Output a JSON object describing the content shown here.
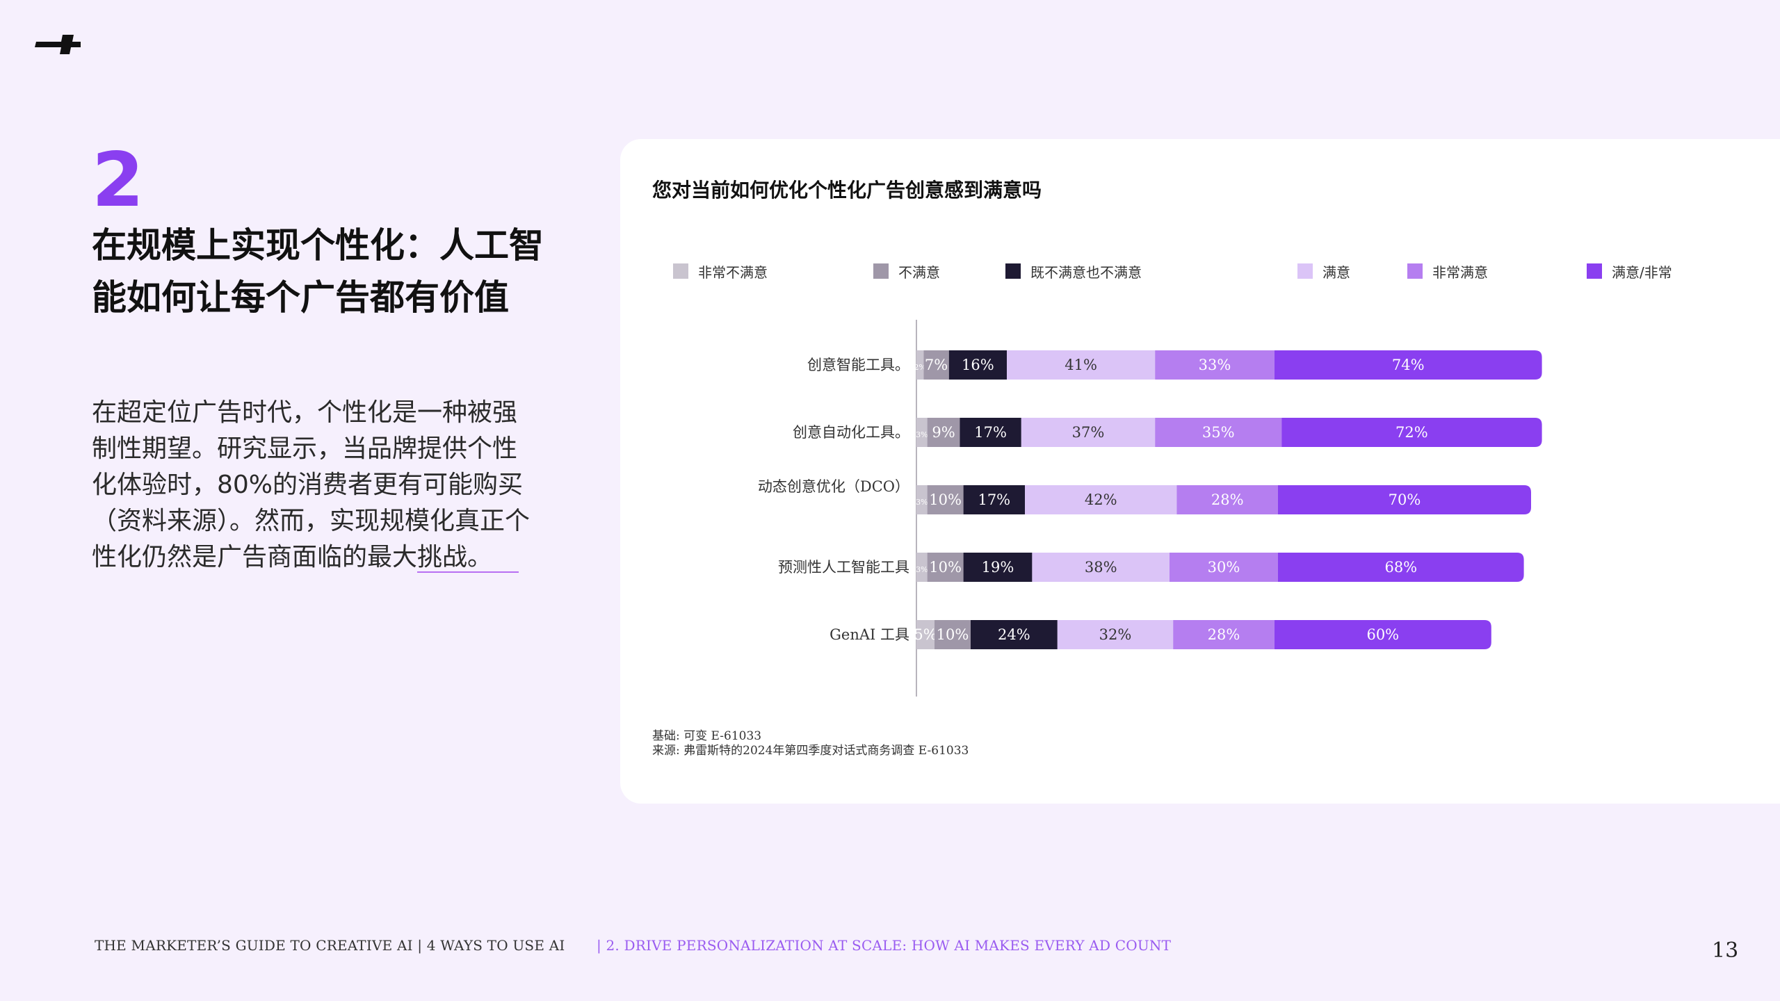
{
  "section": {
    "number": "2",
    "title": "在规模上实现个性化：人工智能如何让每个广告都有价值",
    "body": "在超定位广告时代，个性化是一种被强制性期望。研究显示，当品牌提供个性化体验时，80%的消费者更有可能购买（资料来源）。然而，实现规模化真正个性化仍然是广告商面临的最大挑战。"
  },
  "chart_data": {
    "type": "bar",
    "orientation": "horizontal-stacked",
    "title": "您对当前如何优化个性化广告创意感到满意吗",
    "legend_position": "top",
    "legend": [
      {
        "label": "非常不满意",
        "color": "#c9c4cf"
      },
      {
        "label": "不满意",
        "color": "#9f97a8"
      },
      {
        "label": "既不满意也不满意",
        "color": "#1e1a33"
      },
      {
        "label": "满意",
        "color": "#dbc4f7"
      },
      {
        "label": "非常满意",
        "color": "#b57ef0"
      },
      {
        "label": "满意/非常",
        "color": "#8a3ff0"
      }
    ],
    "categories": [
      "创意智能工具。",
      "创意自动化工具。",
      "动态创意优化（DCO）",
      "预测性人工智能工具",
      "GenAI 工具"
    ],
    "series": [
      {
        "name": "非常不满意",
        "values": [
          2,
          3,
          3,
          3,
          5
        ],
        "labels": [
          "2%",
          "3%",
          "3%",
          "3%",
          "5%"
        ]
      },
      {
        "name": "不满意",
        "values": [
          7,
          9,
          10,
          10,
          10
        ],
        "labels": [
          "7%",
          "9%",
          "10%",
          "10%",
          "10%"
        ]
      },
      {
        "name": "既不满意也不满意",
        "values": [
          16,
          17,
          17,
          19,
          24
        ],
        "labels": [
          "16%",
          "17%",
          "17%",
          "19%",
          "24%"
        ]
      },
      {
        "name": "满意",
        "values": [
          41,
          37,
          42,
          38,
          32
        ],
        "labels": [
          "41%",
          "37%",
          "42%",
          "38%",
          "32%"
        ]
      },
      {
        "name": "非常满意",
        "values": [
          33,
          35,
          28,
          30,
          28
        ],
        "labels": [
          "33%",
          "35%",
          "28%",
          "30%",
          "28%"
        ]
      },
      {
        "name": "满意/非常",
        "values": [
          74,
          72,
          70,
          68,
          60
        ],
        "labels": [
          "74%",
          "72%",
          "70%",
          "68%",
          "60%"
        ]
      }
    ]
  },
  "footnotes": {
    "base": "基础: 可变 E-61033",
    "source": "来源: 弗雷斯特的2024年第四季度对话式商务调查 E-61033"
  },
  "footer": {
    "left": "THE MARKETER’S GUIDE TO CREATIVE AI | 4 WAYS TO USE AI",
    "middle": "| 2. DRIVE PERSONALIZATION AT SCALE: HOW AI MAKES EVERY AD COUNT",
    "page": "13"
  }
}
